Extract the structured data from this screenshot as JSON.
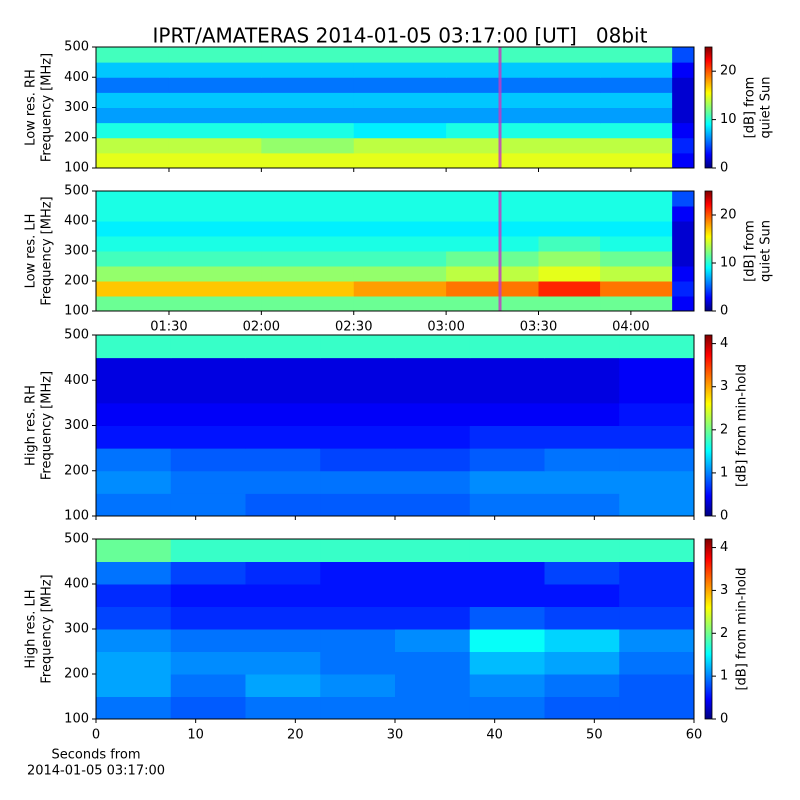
{
  "chart_data": [
    {
      "type": "heatmap",
      "ylabel": [
        "Low res. RH",
        "Frequency [MHz]"
      ],
      "colorbar_label": [
        "[dB] from",
        "quiet Sun"
      ],
      "xlim": [
        66.3,
        260.5
      ],
      "xticks": [
        90,
        120,
        150,
        180,
        210,
        240
      ],
      "marker_x": 197.5,
      "marker_color": "#c040c0",
      "ylim": [
        100,
        500
      ],
      "yticks": [
        100,
        200,
        300,
        400,
        500
      ],
      "clim": [
        0,
        25
      ],
      "cticks": [
        0,
        10,
        20
      ],
      "xbins": [
        66.3,
        90,
        120,
        150,
        180,
        210,
        230,
        253.4,
        260.5
      ],
      "ybins": [
        100,
        150,
        200,
        250,
        300,
        350,
        400,
        450,
        500
      ],
      "values": [
        [
          15,
          15,
          15,
          15,
          15,
          15,
          15,
          3
        ],
        [
          14,
          14,
          13,
          14,
          14,
          14,
          14,
          4
        ],
        [
          10,
          10,
          10,
          9,
          10,
          10,
          10,
          3
        ],
        [
          7,
          7,
          7,
          7,
          7,
          7,
          7,
          2
        ],
        [
          8,
          8,
          8,
          8,
          8,
          8,
          8,
          2
        ],
        [
          6,
          6,
          6,
          6,
          6,
          6,
          6,
          2
        ],
        [
          8,
          8,
          8,
          8,
          8,
          8,
          8,
          3
        ],
        [
          11,
          11,
          11,
          11,
          11,
          11,
          11,
          5
        ]
      ]
    },
    {
      "type": "heatmap",
      "ylabel": [
        "Low res. LH",
        "Frequency [MHz]"
      ],
      "colorbar_label": [
        "[dB] from",
        "quiet Sun"
      ],
      "xlim": [
        66.3,
        260.5
      ],
      "xticks": [
        {
          "value": 90,
          "label": "01:30"
        },
        {
          "value": 120,
          "label": "02:00"
        },
        {
          "value": 150,
          "label": "02:30"
        },
        {
          "value": 180,
          "label": "03:00"
        },
        {
          "value": 210,
          "label": "03:30"
        },
        {
          "value": 240,
          "label": "04:00"
        }
      ],
      "marker_x": 197.5,
      "marker_color": "#c040c0",
      "ylim": [
        100,
        500
      ],
      "yticks": [
        100,
        200,
        300,
        400,
        500
      ],
      "clim": [
        0,
        25
      ],
      "cticks": [
        0,
        10,
        20
      ],
      "xbins": [
        66.3,
        90,
        120,
        150,
        180,
        210,
        230,
        253.4,
        260.5
      ],
      "ybins": [
        100,
        150,
        200,
        250,
        300,
        350,
        400,
        450,
        500
      ],
      "values": [
        [
          12,
          12,
          12,
          12,
          12,
          12,
          12,
          3
        ],
        [
          17,
          17,
          17,
          18,
          19,
          21,
          19,
          4
        ],
        [
          13,
          13,
          13,
          13,
          14,
          15,
          14,
          3
        ],
        [
          11,
          11,
          11,
          11,
          12,
          13,
          12,
          2
        ],
        [
          10,
          10,
          10,
          10,
          10,
          11,
          10,
          2
        ],
        [
          9,
          9,
          9,
          9,
          9,
          9,
          9,
          2
        ],
        [
          10,
          10,
          10,
          10,
          10,
          10,
          10,
          3
        ],
        [
          10,
          10,
          10,
          10,
          10,
          10,
          10,
          5
        ]
      ]
    },
    {
      "type": "heatmap",
      "ylabel": [
        "High res. RH",
        "Frequency [MHz]"
      ],
      "colorbar_label": [
        "[dB] from min-hold"
      ],
      "xlim": [
        0,
        60
      ],
      "xticks": [
        0,
        10,
        20,
        30,
        40,
        50,
        60
      ],
      "ylim": [
        100,
        500
      ],
      "yticks": [
        100,
        200,
        300,
        400,
        500
      ],
      "clim": [
        0,
        4.2
      ],
      "cticks": [
        0,
        1,
        2,
        3,
        4
      ],
      "xbins": [
        0,
        7.5,
        15,
        22.5,
        30,
        37.5,
        45,
        52.5,
        60
      ],
      "ybins": [
        100,
        150,
        200,
        250,
        300,
        350,
        400,
        450,
        500
      ],
      "values": [
        [
          1.0,
          1.0,
          0.9,
          0.9,
          0.9,
          1.0,
          1.0,
          1.1
        ],
        [
          1.1,
          1.0,
          1.0,
          1.0,
          1.0,
          1.1,
          1.1,
          1.1
        ],
        [
          1.0,
          0.9,
          0.9,
          0.8,
          0.8,
          0.9,
          1.0,
          1.0
        ],
        [
          0.6,
          0.6,
          0.6,
          0.6,
          0.6,
          0.7,
          0.7,
          0.7
        ],
        [
          0.5,
          0.5,
          0.5,
          0.5,
          0.5,
          0.5,
          0.5,
          0.6
        ],
        [
          0.4,
          0.4,
          0.4,
          0.4,
          0.4,
          0.4,
          0.4,
          0.5
        ],
        [
          0.4,
          0.4,
          0.4,
          0.4,
          0.4,
          0.4,
          0.4,
          0.5
        ],
        [
          1.8,
          1.8,
          1.8,
          1.8,
          1.8,
          1.8,
          1.8,
          1.8
        ]
      ]
    },
    {
      "type": "heatmap",
      "ylabel": [
        "High res. LH",
        "Frequency [MHz]"
      ],
      "colorbar_label": [
        "[dB] from min-hold"
      ],
      "xlabel": [
        "Seconds from",
        "2014-01-05 03:17:00"
      ],
      "show_xticklabels": true,
      "xlim": [
        0,
        60
      ],
      "xticks": [
        0,
        10,
        20,
        30,
        40,
        50,
        60
      ],
      "ylim": [
        100,
        500
      ],
      "yticks": [
        100,
        200,
        300,
        400,
        500
      ],
      "clim": [
        0,
        4.2
      ],
      "cticks": [
        0,
        1,
        2,
        3,
        4
      ],
      "xbins": [
        0,
        7.5,
        15,
        22.5,
        30,
        37.5,
        45,
        52.5,
        60
      ],
      "ybins": [
        100,
        150,
        200,
        250,
        300,
        350,
        400,
        450,
        500
      ],
      "values": [
        [
          1.0,
          0.9,
          1.0,
          1.0,
          1.0,
          1.0,
          0.9,
          0.9
        ],
        [
          1.2,
          1.0,
          1.2,
          1.1,
          1.0,
          1.1,
          1.0,
          0.9
        ],
        [
          1.2,
          1.1,
          1.1,
          1.0,
          1.0,
          1.3,
          1.2,
          1.0
        ],
        [
          1.1,
          1.0,
          1.0,
          1.0,
          1.1,
          1.6,
          1.4,
          1.1
        ],
        [
          0.8,
          0.7,
          0.7,
          0.7,
          0.7,
          0.9,
          0.8,
          0.8
        ],
        [
          0.7,
          0.6,
          0.6,
          0.6,
          0.6,
          0.6,
          0.6,
          0.7
        ],
        [
          1.0,
          0.8,
          0.7,
          0.6,
          0.6,
          0.6,
          0.8,
          0.7
        ],
        [
          2.0,
          1.8,
          1.8,
          1.8,
          1.8,
          1.8,
          1.8,
          1.8
        ]
      ]
    }
  ],
  "title": "IPRT/AMATERAS 2014-01-05 03:17:00 [UT]   08bit"
}
